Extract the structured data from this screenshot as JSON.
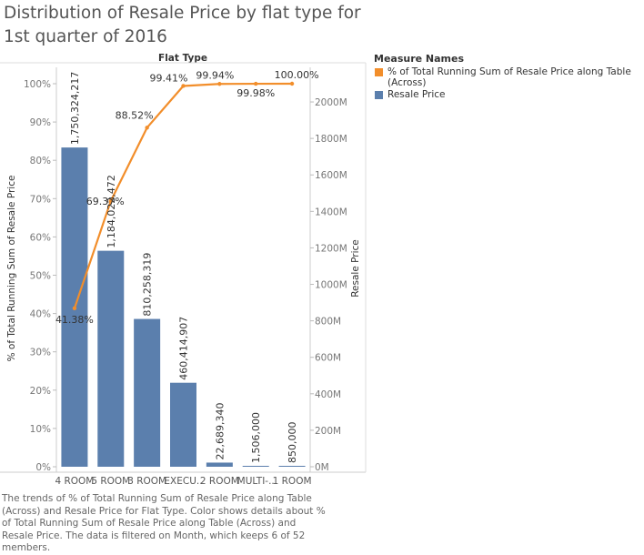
{
  "title": "Distribution of Resale Price by flat type for 1st quarter of 2016",
  "caption": "The trends of % of Total Running Sum of Resale Price along Table (Across) and Resale Price for Flat Type.  Color shows details about % of Total Running Sum of Resale Price along Table (Across) and Resale Price. The data is filtered on Month, which keeps 6 of 52 members.",
  "legend": {
    "title": "Measure Names",
    "items": [
      {
        "label": "% of Total Running Sum of Resale Price along Table (Across)",
        "color": "#f28e2b"
      },
      {
        "label": "Resale Price",
        "color": "#5b7fad"
      }
    ]
  },
  "chart_data": {
    "type": "bar",
    "title": "Distribution of Resale Price by flat type for 1st quarter of 2016",
    "header": "Flat Type",
    "categories": [
      "4 ROOM",
      "5 ROOM",
      "3 ROOM",
      "EXECU..",
      "2 ROOM",
      "MULTI-..",
      "1 ROOM"
    ],
    "series": [
      {
        "name": "Resale Price",
        "type": "bar",
        "axis": "right",
        "color": "#5b7fad",
        "values": [
          1750324217,
          1184022472,
          810258319,
          460414907,
          22689340,
          1506000,
          850000
        ],
        "labels": [
          "1,750,324,217",
          "1,184,022,472",
          "810,258,319",
          "460,414,907",
          "22,689,340",
          "1,506,000",
          "850,000"
        ]
      },
      {
        "name": "% of Total Running Sum of Resale Price along Table (Across)",
        "type": "line",
        "axis": "left",
        "color": "#f28e2b",
        "values": [
          41.38,
          69.37,
          88.52,
          99.41,
          99.94,
          99.98,
          100.0
        ],
        "labels": [
          "41.38%",
          "69.37%",
          "88.52%",
          "99.41%",
          "99.94%",
          "99.98%",
          "100.00%"
        ]
      }
    ],
    "left_axis": {
      "label": "% of Total Running Sum of Resale Price",
      "ylim": [
        0,
        100
      ],
      "ticks": [
        0,
        10,
        20,
        30,
        40,
        50,
        60,
        70,
        80,
        90,
        100
      ],
      "tick_labels": [
        "0%",
        "10%",
        "20%",
        "30%",
        "40%",
        "50%",
        "60%",
        "70%",
        "80%",
        "90%",
        "100%"
      ]
    },
    "right_axis": {
      "label": "Resale Price",
      "ylim": [
        0,
        2100000000
      ],
      "ticks": [
        0,
        200000000,
        400000000,
        600000000,
        800000000,
        1000000000,
        1200000000,
        1400000000,
        1600000000,
        1800000000,
        2000000000
      ],
      "tick_labels": [
        "0M",
        "200M",
        "400M",
        "600M",
        "800M",
        "1000M",
        "1200M",
        "1400M",
        "1600M",
        "1800M",
        "2000M"
      ]
    },
    "grid": false,
    "legend_position": "right"
  }
}
